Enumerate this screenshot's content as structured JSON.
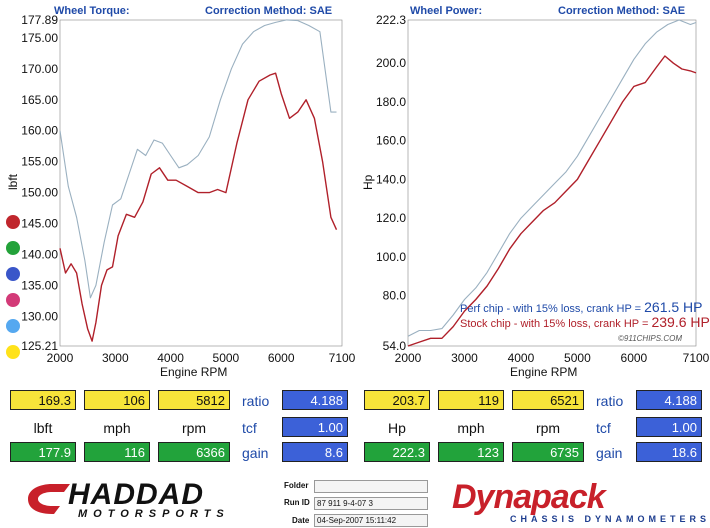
{
  "colors": {
    "header_blue": "#1f4aa8",
    "stock_red": "#b0202a",
    "perf_silver": "#9ab0c0",
    "yellow": "#f7e43a",
    "green": "#22a33b",
    "blue": "#3c61d8"
  },
  "header": {
    "left_title": "Wheel Torque:",
    "left_method": "Correction Method: SAE",
    "right_title": "Wheel Power:",
    "right_method": "Correction Method: SAE"
  },
  "legend_dots": [
    "#c0262d",
    "#23a23a",
    "#3a56c9",
    "#d33a78",
    "#55a8f0",
    "#ffe21a"
  ],
  "annotations": {
    "perf_text": "Perf chip - with 15% loss, crank HP = ",
    "perf_value": "261.5 HP",
    "stock_text": "Stock chip - with 15% loss, crank HP = ",
    "stock_value": "239.6 HP",
    "watermark": "©911CHIPS.COM"
  },
  "readouts": {
    "left": {
      "row1": [
        "169.3",
        "106",
        "5812"
      ],
      "row1_label": "ratio",
      "row1_value": "4.188",
      "units": [
        "lbft",
        "mph",
        "rpm"
      ],
      "units_label": "tcf",
      "units_value": "1.00",
      "row3": [
        "177.9",
        "116",
        "6366"
      ],
      "row3_label": "gain",
      "row3_value": "8.6"
    },
    "right": {
      "row1": [
        "203.7",
        "119",
        "6521"
      ],
      "row1_label": "ratio",
      "row1_value": "4.188",
      "units": [
        "Hp",
        "mph",
        "rpm"
      ],
      "units_label": "tcf",
      "units_value": "1.00",
      "row3": [
        "222.3",
        "123",
        "6735"
      ],
      "row3_label": "gain",
      "row3_value": "18.6"
    }
  },
  "footer": {
    "haddad": "HADDAD",
    "motorsports": "MOTORSPORTS",
    "folder_label": "Folder",
    "folder_value": "",
    "runid_label": "Run ID",
    "runid_value": "87 911 9-4-07 3",
    "date_label": "Date",
    "date_value": "04-Sep-2007  15:11:42",
    "dynapack": "Dynapack",
    "chassis": "CHASSIS DYNAMOMETERS"
  },
  "chart_data": [
    {
      "type": "line",
      "xlabel": "Engine RPM",
      "ylabel": "lbft",
      "xlim": [
        2000,
        7100
      ],
      "ylim": [
        125.21,
        177.89
      ],
      "xticks": [
        "2000",
        "3000",
        "4000",
        "5000",
        "6000",
        "7100"
      ],
      "yticks": [
        "177.89",
        "175.00",
        "170.00",
        "165.00",
        "160.00",
        "155.00",
        "150.00",
        "145.00",
        "140.00",
        "135.00",
        "130.00",
        "125.21"
      ],
      "series": [
        {
          "color": "#9ab0c0",
          "x": [
            2000,
            2150,
            2300,
            2450,
            2550,
            2650,
            2800,
            2950,
            3100,
            3250,
            3400,
            3550,
            3700,
            3850,
            4000,
            4150,
            4300,
            4500,
            4700,
            4900,
            5100,
            5300,
            5500,
            5700,
            5900,
            6100,
            6300,
            6500,
            6700,
            6900,
            7000
          ],
          "y": [
            160,
            151,
            146,
            139,
            133,
            135,
            142,
            148,
            149,
            153,
            157,
            156,
            158.5,
            158,
            156,
            154,
            154.5,
            156,
            159,
            165,
            170,
            174,
            176,
            177,
            177.5,
            177.9,
            177.8,
            177,
            176,
            163,
            163
          ]
        },
        {
          "color": "#b0202a",
          "x": [
            2000,
            2100,
            2200,
            2300,
            2400,
            2500,
            2580,
            2650,
            2750,
            2850,
            2950,
            3050,
            3200,
            3350,
            3500,
            3650,
            3800,
            3950,
            4100,
            4300,
            4500,
            4700,
            4850,
            5000,
            5200,
            5400,
            5600,
            5800,
            5900,
            6000,
            6150,
            6300,
            6450,
            6600,
            6750,
            6900,
            7000
          ],
          "y": [
            141,
            137,
            138.5,
            137,
            132,
            128,
            126,
            129,
            135,
            137.5,
            138,
            143,
            146.5,
            146,
            148.5,
            153,
            154,
            152,
            152,
            151,
            150,
            150,
            150.5,
            150,
            158,
            165,
            168,
            169,
            169.3,
            166,
            162,
            163,
            165,
            162,
            155,
            146,
            144
          ]
        }
      ]
    },
    {
      "type": "line",
      "xlabel": "Engine RPM",
      "ylabel": "Hp",
      "xlim": [
        2000,
        7100
      ],
      "ylim": [
        54.0,
        222.3
      ],
      "xticks": [
        "2000",
        "3000",
        "4000",
        "5000",
        "6000",
        "7100"
      ],
      "yticks": [
        "222.3",
        "200.0",
        "180.0",
        "160.0",
        "140.0",
        "120.0",
        "100.0",
        "80.0",
        "54.0"
      ],
      "series": [
        {
          "color": "#9ab0c0",
          "x": [
            2000,
            2200,
            2400,
            2600,
            2800,
            3000,
            3200,
            3400,
            3600,
            3800,
            4000,
            4200,
            4400,
            4600,
            4800,
            5000,
            5200,
            5400,
            5600,
            5800,
            6000,
            6200,
            6400,
            6600,
            6800,
            7000,
            7100
          ],
          "y": [
            59,
            62,
            62,
            63,
            70,
            78,
            84,
            92,
            102,
            112,
            120,
            126,
            132,
            138,
            144,
            152,
            162,
            172,
            182,
            192,
            202,
            210,
            216,
            220,
            222.3,
            220,
            221
          ]
        },
        {
          "color": "#b0202a",
          "x": [
            2000,
            2200,
            2400,
            2600,
            2800,
            3000,
            3200,
            3400,
            3600,
            3800,
            4000,
            4200,
            4400,
            4600,
            4800,
            5000,
            5200,
            5400,
            5600,
            5800,
            6000,
            6200,
            6400,
            6550,
            6700,
            6850,
            7000,
            7100
          ],
          "y": [
            54,
            56,
            58,
            58,
            64,
            72,
            78,
            85,
            94,
            104,
            112,
            118,
            124,
            128,
            134,
            140,
            150,
            160,
            170,
            180,
            188,
            190,
            198,
            203.7,
            200,
            197,
            196,
            195
          ]
        }
      ]
    }
  ]
}
